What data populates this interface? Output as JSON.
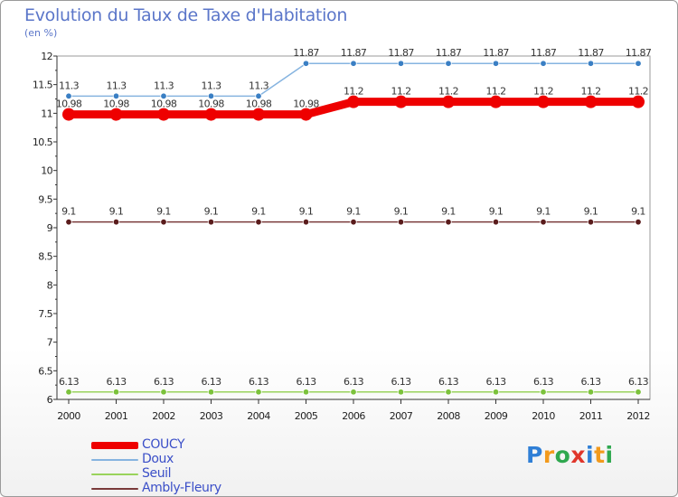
{
  "title": "Evolution du Taux de Taxe d'Habitation",
  "subtitle": "(en %)",
  "logo": {
    "letters": [
      {
        "ch": "P",
        "color": "#2f7fd6"
      },
      {
        "ch": "r",
        "color": "#f29a1c"
      },
      {
        "ch": "o",
        "color": "#2fa84f"
      },
      {
        "ch": "x",
        "color": "#e0362b"
      },
      {
        "ch": "i",
        "color": "#2f7fd6"
      },
      {
        "ch": "t",
        "color": "#f29a1c"
      },
      {
        "ch": "i",
        "color": "#2fa84f"
      }
    ]
  },
  "chart_data": {
    "type": "line",
    "title": "Evolution du Taux de Taxe d'Habitation",
    "ylabel": "(en %)",
    "xlabel": "",
    "ylim": [
      6,
      12
    ],
    "yticks": [
      "6",
      "6.5",
      "7",
      "7.5",
      "8",
      "8.5",
      "9",
      "9.5",
      "10",
      "10.5",
      "11",
      "11.5",
      "12"
    ],
    "x": [
      "2000",
      "2001",
      "2002",
      "2003",
      "2004",
      "2005",
      "2006",
      "2007",
      "2008",
      "2009",
      "2010",
      "2011",
      "2012"
    ],
    "grid": false,
    "legend": "bottom-left",
    "series": [
      {
        "name": "Seuil",
        "color": "#99d35c",
        "marker": "#7cc23c",
        "values": [
          6.13,
          6.13,
          6.13,
          6.13,
          6.13,
          6.13,
          6.13,
          6.13,
          6.13,
          6.13,
          6.13,
          6.13,
          6.13
        ],
        "labels": [
          "6.13",
          "6.13",
          "6.13",
          "6.13",
          "6.13",
          "6.13",
          "6.13",
          "6.13",
          "6.13",
          "6.13",
          "6.13",
          "6.13",
          "6.13"
        ]
      },
      {
        "name": "Ambly-Fleury",
        "color": "#7a3a3a",
        "marker": "#5a1c1c",
        "values": [
          9.1,
          9.1,
          9.1,
          9.1,
          9.1,
          9.1,
          9.1,
          9.1,
          9.1,
          9.1,
          9.1,
          9.1,
          9.1
        ],
        "labels": [
          "9.1",
          "9.1",
          "9.1",
          "9.1",
          "9.1",
          "9.1",
          "9.1",
          "9.1",
          "9.1",
          "9.1",
          "9.1",
          "9.1",
          "9.1"
        ]
      },
      {
        "name": "Doux",
        "color": "#86b4e0",
        "marker": "#3a7fc4",
        "values": [
          11.3,
          11.3,
          11.3,
          11.3,
          11.3,
          11.87,
          11.87,
          11.87,
          11.87,
          11.87,
          11.87,
          11.87,
          11.87
        ],
        "labels": [
          "11.3",
          "11.3",
          "11.3",
          "11.3",
          "11.3",
          "11.87",
          "11.87",
          "11.87",
          "11.87",
          "11.87",
          "11.87",
          "11.87",
          "11.87"
        ]
      },
      {
        "name": "COUCY",
        "color": "#ee0000",
        "marker": "#ee0000",
        "values": [
          10.98,
          10.98,
          10.98,
          10.98,
          10.98,
          10.98,
          11.2,
          11.2,
          11.2,
          11.2,
          11.2,
          11.2,
          11.2
        ],
        "labels": [
          "10.98",
          "10.98",
          "10.98",
          "10.98",
          "10.98",
          "10.98",
          "11.2",
          "11.2",
          "11.2",
          "11.2",
          "11.2",
          "11.2",
          "11.2"
        ]
      }
    ],
    "legend_order": [
      "COUCY",
      "Doux",
      "Seuil",
      "Ambly-Fleury"
    ]
  }
}
